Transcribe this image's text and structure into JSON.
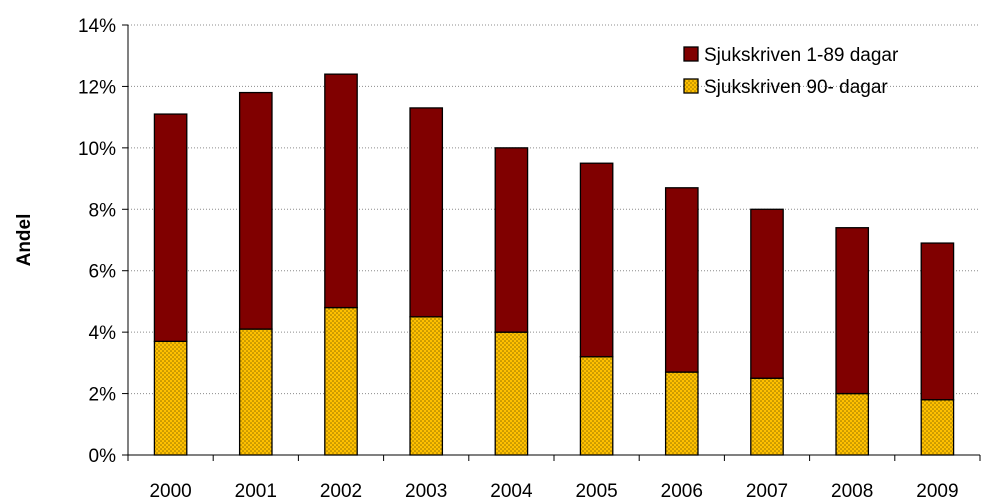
{
  "chart_data": {
    "type": "bar",
    "stacked": true,
    "categories": [
      "2000",
      "2001",
      "2002",
      "2003",
      "2004",
      "2005",
      "2006",
      "2007",
      "2008",
      "2009"
    ],
    "series": [
      {
        "name": "Sjukskriven 90- dagar",
        "color": "#ffc000",
        "pattern": "dotted",
        "values": [
          3.7,
          4.1,
          4.8,
          4.5,
          4.0,
          3.2,
          2.7,
          2.5,
          2.0,
          1.8
        ]
      },
      {
        "name": "Sjukskriven 1-89 dagar",
        "color": "#800000",
        "values": [
          7.4,
          7.7,
          7.6,
          6.8,
          6.0,
          6.3,
          6.0,
          5.5,
          5.4,
          5.1
        ]
      }
    ],
    "title": "",
    "xlabel": "",
    "ylabel": "Andel",
    "ylim": [
      0,
      14
    ],
    "y_ticks": [
      0,
      2,
      4,
      6,
      8,
      10,
      12,
      14
    ],
    "y_tick_format": "{v}%",
    "grid": true,
    "legend": {
      "position": "top-right",
      "order": [
        "Sjukskriven 1-89 dagar",
        "Sjukskriven 90- dagar"
      ]
    }
  }
}
